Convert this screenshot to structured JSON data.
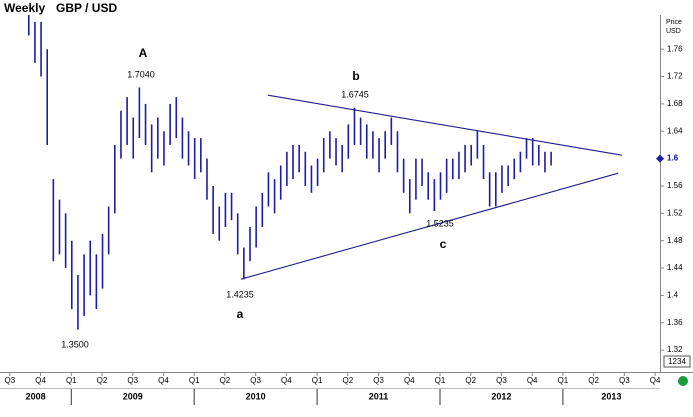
{
  "chart_data": {
    "type": "ohlc",
    "title": "Weekly",
    "subtitle": "GBP / USD",
    "y_label": "Price",
    "y_unit": "USD",
    "color": "#1c1ca8",
    "x": [
      2008.65,
      2008.7,
      2008.75,
      2008.8,
      2008.85,
      2008.9,
      2008.95,
      2009.0,
      2009.05,
      2009.1,
      2009.15,
      2009.2,
      2009.25,
      2009.3,
      2009.35,
      2009.4,
      2009.45,
      2009.5,
      2009.55,
      2009.6,
      2009.65,
      2009.7,
      2009.75,
      2009.8,
      2009.85,
      2009.9,
      2009.95,
      2010.0,
      2010.05,
      2010.1,
      2010.15,
      2010.2,
      2010.25,
      2010.3,
      2010.35,
      2010.4,
      2010.45,
      2010.5,
      2010.55,
      2010.6,
      2010.65,
      2010.7,
      2010.75,
      2010.8,
      2010.85,
      2010.9,
      2010.95,
      2011.0,
      2011.05,
      2011.1,
      2011.15,
      2011.2,
      2011.25,
      2011.3,
      2011.35,
      2011.4,
      2011.45,
      2011.5,
      2011.55,
      2011.6,
      2011.65,
      2011.7,
      2011.75,
      2011.8,
      2011.85,
      2011.9,
      2011.95,
      2012.0,
      2012.05,
      2012.1,
      2012.15,
      2012.2,
      2012.25,
      2012.3,
      2012.35,
      2012.4,
      2012.45,
      2012.5,
      2012.55,
      2012.6,
      2012.65,
      2012.7,
      2012.75,
      2012.8,
      2012.85,
      2012.9
    ],
    "series": [
      {
        "high": [
          1.81,
          1.8,
          1.8,
          1.76,
          1.57,
          1.54,
          1.52,
          1.48,
          1.43,
          1.46,
          1.48,
          1.46,
          1.49,
          1.53,
          1.62,
          1.67,
          1.69,
          1.66,
          1.704,
          1.68,
          1.65,
          1.66,
          1.64,
          1.68,
          1.69,
          1.66,
          1.64,
          1.63,
          1.63,
          1.6,
          1.56,
          1.53,
          1.55,
          1.55,
          1.52,
          1.47,
          1.5,
          1.53,
          1.55,
          1.58,
          1.57,
          1.59,
          1.61,
          1.62,
          1.62,
          1.61,
          1.59,
          1.6,
          1.63,
          1.64,
          1.63,
          1.62,
          1.65,
          1.6745,
          1.66,
          1.65,
          1.64,
          1.63,
          1.64,
          1.66,
          1.64,
          1.6,
          1.57,
          1.6,
          1.6,
          1.58,
          1.57,
          1.58,
          1.6,
          1.6,
          1.61,
          1.62,
          1.62,
          1.64,
          1.62,
          1.58,
          1.58,
          1.59,
          1.59,
          1.6,
          1.61,
          1.63,
          1.63,
          1.62,
          1.61,
          1.61
        ],
        "low": [
          1.78,
          1.74,
          1.72,
          1.62,
          1.45,
          1.46,
          1.44,
          1.38,
          1.35,
          1.37,
          1.4,
          1.38,
          1.41,
          1.46,
          1.52,
          1.6,
          1.62,
          1.6,
          1.63,
          1.62,
          1.58,
          1.6,
          1.59,
          1.62,
          1.63,
          1.6,
          1.59,
          1.57,
          1.58,
          1.54,
          1.49,
          1.48,
          1.5,
          1.51,
          1.46,
          1.4235,
          1.45,
          1.47,
          1.5,
          1.53,
          1.52,
          1.54,
          1.56,
          1.57,
          1.58,
          1.56,
          1.55,
          1.56,
          1.58,
          1.6,
          1.59,
          1.58,
          1.6,
          1.62,
          1.62,
          1.6,
          1.6,
          1.58,
          1.6,
          1.62,
          1.58,
          1.55,
          1.52,
          1.54,
          1.56,
          1.54,
          1.5235,
          1.54,
          1.55,
          1.57,
          1.57,
          1.58,
          1.59,
          1.6,
          1.57,
          1.53,
          1.53,
          1.55,
          1.56,
          1.57,
          1.58,
          1.6,
          1.59,
          1.59,
          1.58,
          1.59
        ]
      }
    ],
    "trendlines": [
      {
        "x": [
          2010.6,
          2013.48
        ],
        "y": [
          1.6927,
          1.605
        ]
      },
      {
        "x": [
          2010.38,
          2013.45
        ],
        "y": [
          1.4237,
          1.5787
        ]
      }
    ],
    "annotations": [
      "A",
      "1.7040",
      "1.3500",
      "1.4235",
      "a",
      "b",
      "1.6745",
      "1.5235",
      "c"
    ],
    "last_price": 1.6,
    "footer_box": "1234",
    "xlim": [
      2008.42,
      2013.79
    ],
    "ylim": [
      1.288,
      1.81
    ],
    "yticks": [
      1.76,
      1.72,
      1.68,
      1.64,
      1.6,
      1.56,
      1.52,
      1.48,
      1.44,
      1.4,
      1.36,
      1.32
    ],
    "xticks": [
      {
        "value": 2008.5,
        "label": "Q3"
      },
      {
        "value": 2008.75,
        "label": "Q4"
      },
      {
        "value": 2009.0,
        "label": "Q1"
      },
      {
        "value": 2009.25,
        "label": "Q2"
      },
      {
        "value": 2009.5,
        "label": "Q3"
      },
      {
        "value": 2009.75,
        "label": "Q4"
      },
      {
        "value": 2010.0,
        "label": "Q1"
      },
      {
        "value": 2010.25,
        "label": "Q2"
      },
      {
        "value": 2010.5,
        "label": "Q3"
      },
      {
        "value": 2010.75,
        "label": "Q4"
      },
      {
        "value": 2011.0,
        "label": "Q1"
      },
      {
        "value": 2011.25,
        "label": "Q2"
      },
      {
        "value": 2011.5,
        "label": "Q3"
      },
      {
        "value": 2011.75,
        "label": "Q4"
      },
      {
        "value": 2012.0,
        "label": "Q1"
      },
      {
        "value": 2012.25,
        "label": "Q2"
      },
      {
        "value": 2012.5,
        "label": "Q3"
      },
      {
        "value": 2012.75,
        "label": "Q4"
      },
      {
        "value": 2013.0,
        "label": "Q1"
      },
      {
        "value": 2013.25,
        "label": "Q2"
      },
      {
        "value": 2013.5,
        "label": "Q3"
      },
      {
        "value": 2013.75,
        "label": "Q4"
      }
    ],
    "years": [
      {
        "value": 2008,
        "label": "2008"
      },
      {
        "value": 2009,
        "label": "2009"
      },
      {
        "value": 2010,
        "label": "2010"
      },
      {
        "value": 2011,
        "label": "2011"
      },
      {
        "value": 2012,
        "label": "2012"
      },
      {
        "value": 2013,
        "label": "2013"
      }
    ]
  }
}
